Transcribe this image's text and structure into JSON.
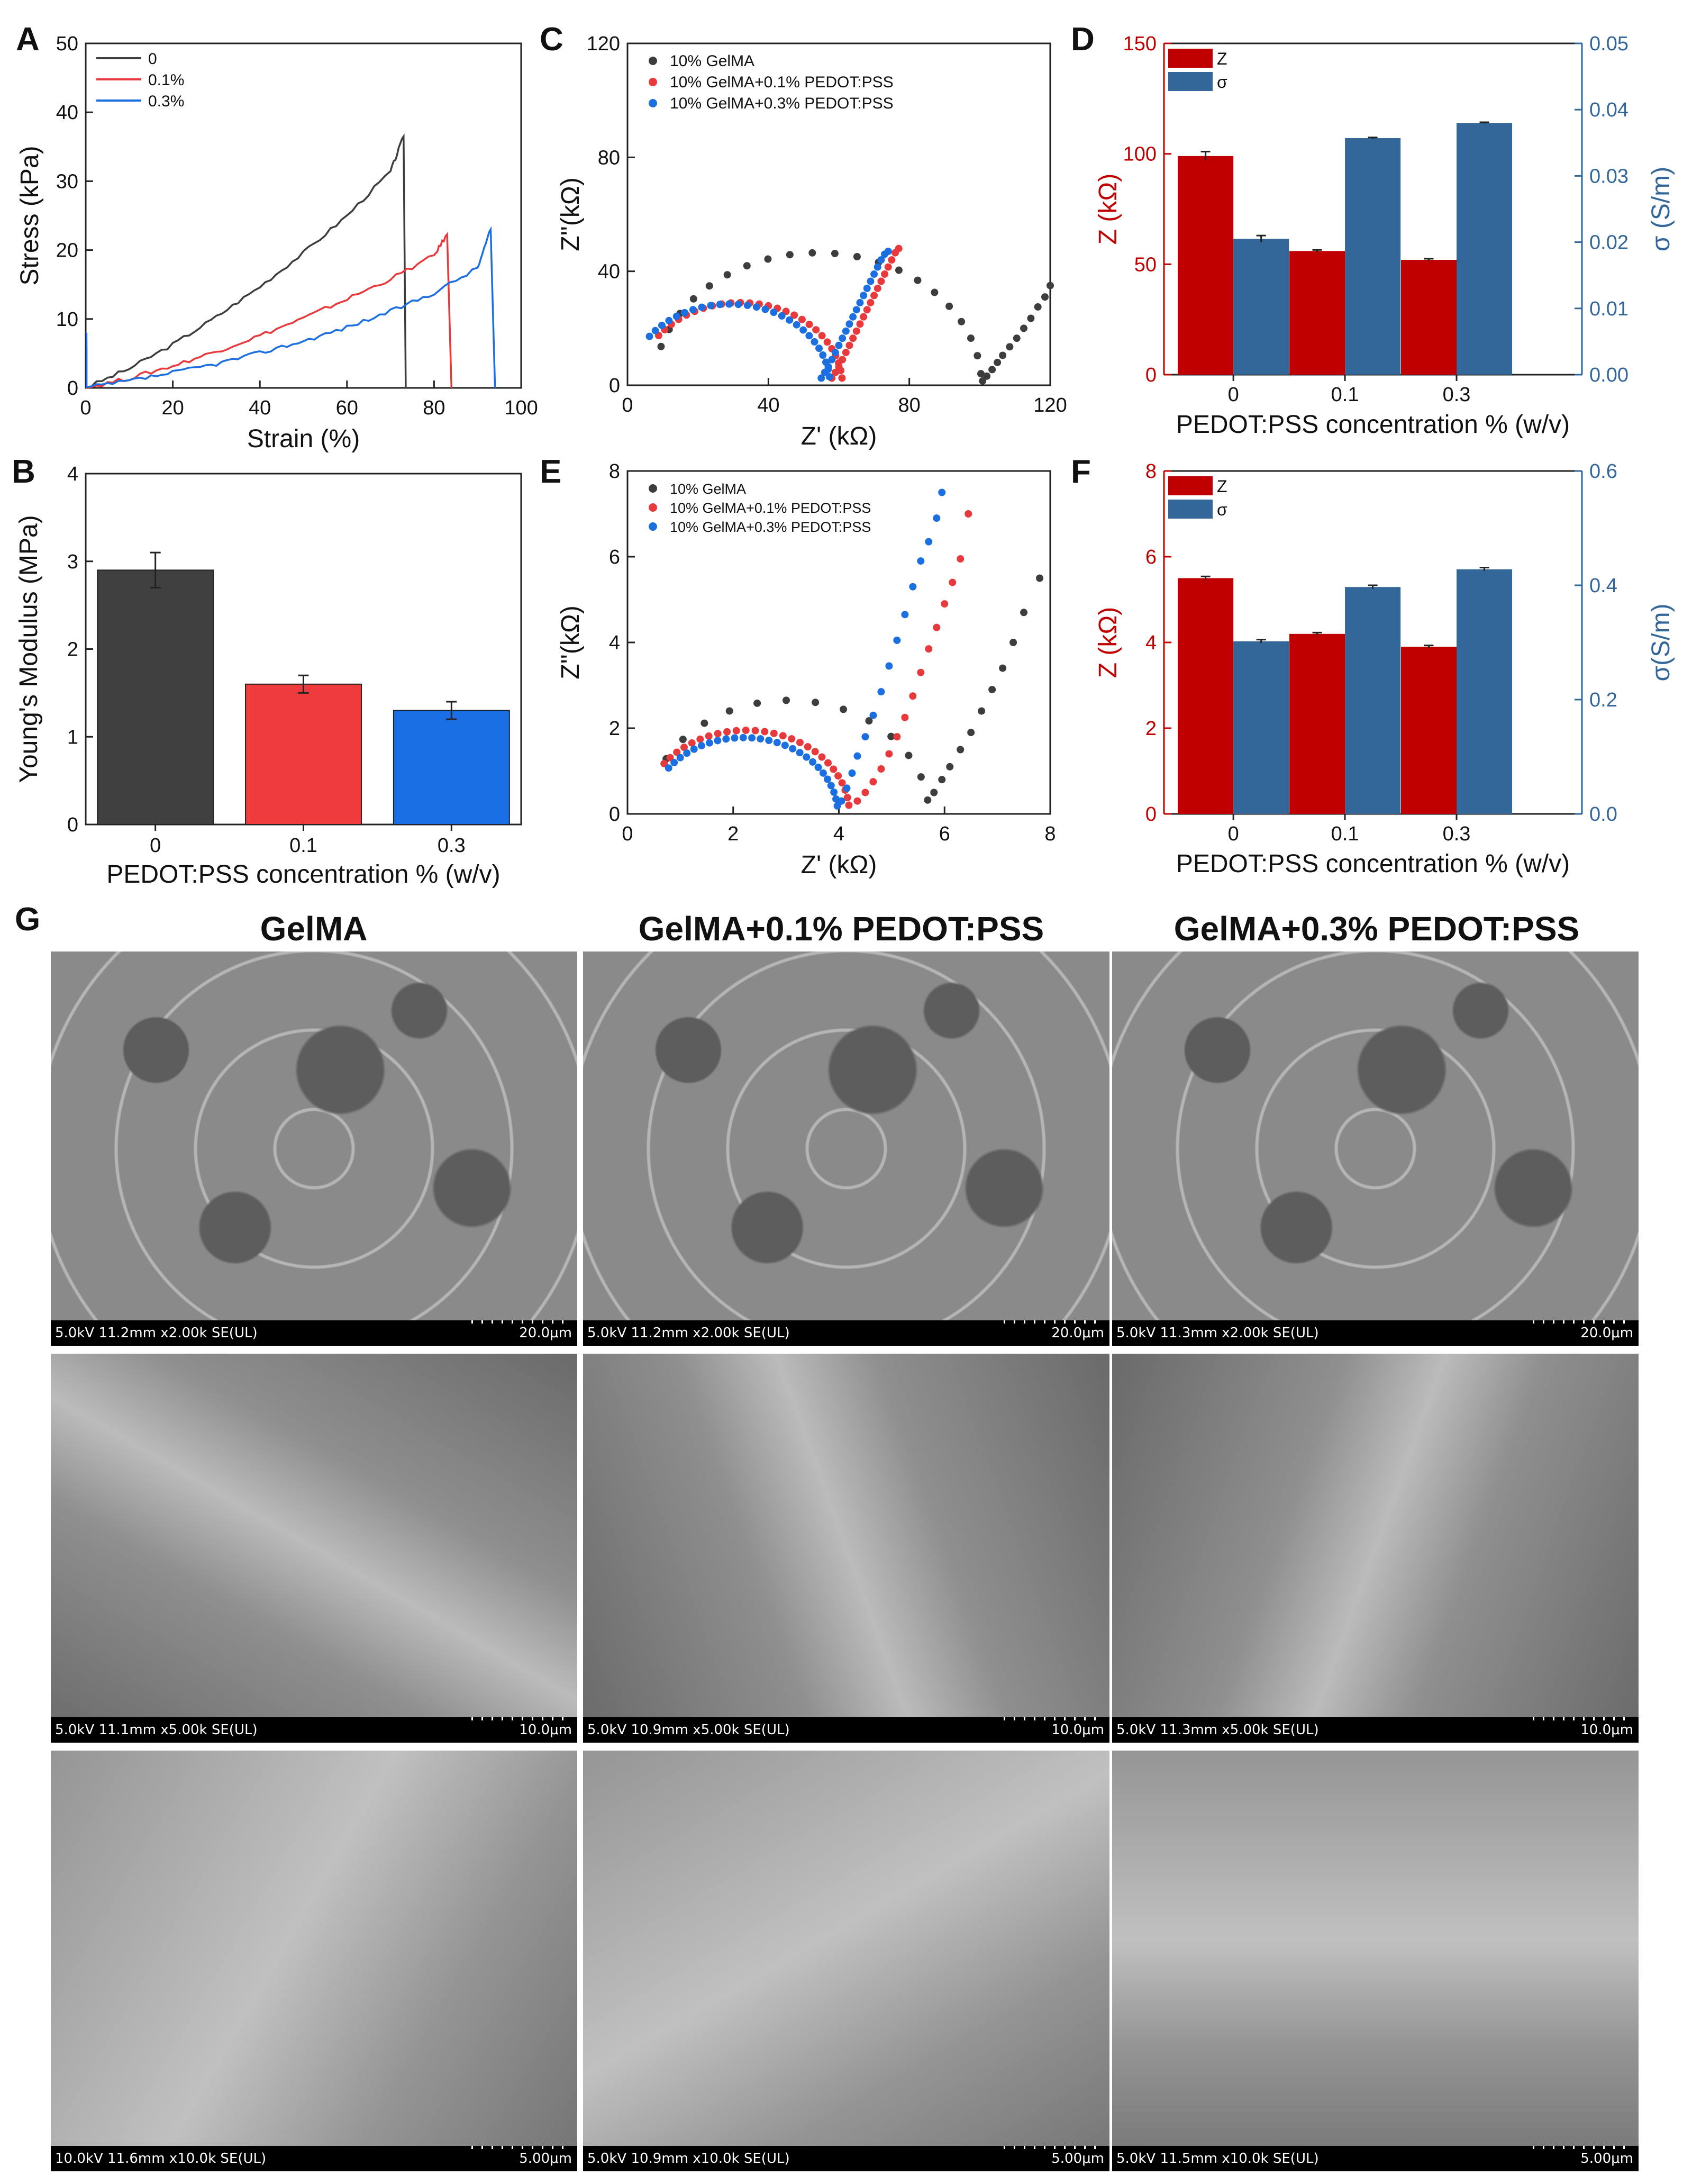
{
  "panel_labels": {
    "A": "A",
    "B": "B",
    "C": "C",
    "D": "D",
    "E": "E",
    "F": "F",
    "G": "G"
  },
  "colors": {
    "black": "#3d3d3d",
    "red": "#e8393c",
    "blue": "#1b6fe0",
    "bar_black": "#404040",
    "bar_red": "#ef3b3d",
    "bar_blue": "#1a6fe4",
    "dred": "#c00000",
    "dblue": "#336699"
  },
  "chart_data": [
    {
      "id": "A",
      "type": "line",
      "xlabel": "Strain (%)",
      "ylabel": "Stress (kPa)",
      "xlim": [
        0,
        100
      ],
      "ylim": [
        0,
        50
      ],
      "xticks": [
        "0",
        "20",
        "40",
        "60",
        "80",
        "100"
      ],
      "yticks": [
        "0",
        "10",
        "20",
        "30",
        "40",
        "50"
      ],
      "legend": [
        "0",
        "0.1%",
        "0.3%"
      ],
      "series": [
        {
          "name": "0",
          "x": [
            0,
            10,
            20,
            30,
            40,
            50,
            60,
            70,
            73
          ],
          "y": [
            0,
            2.8,
            6.3,
            10.3,
            14.7,
            19.6,
            25,
            31.4,
            36.5
          ],
          "break_x": 73.5
        },
        {
          "name": "0.1%",
          "x": [
            0,
            10,
            20,
            30,
            40,
            50,
            60,
            70,
            80,
            83
          ],
          "y": [
            0,
            1.4,
            3.2,
            5.3,
            7.6,
            10.1,
            12.9,
            15.8,
            19.2,
            22.3
          ],
          "break_x": 84
        },
        {
          "name": "0.3%",
          "x": [
            0,
            10,
            20,
            30,
            40,
            50,
            60,
            70,
            80,
            90,
            93
          ],
          "y": [
            0,
            1,
            2.2,
            3.5,
            5.1,
            6.8,
            8.8,
            11.1,
            13.8,
            17.4,
            23
          ],
          "break_x": 94
        }
      ]
    },
    {
      "id": "B",
      "type": "bar",
      "xlabel": "PEDOT:PSS concentration % (w/v)",
      "ylabel": "Young's Modulus (MPa)",
      "ylim": [
        0,
        4
      ],
      "yticks": [
        "0",
        "1",
        "2",
        "3",
        "4"
      ],
      "categories": [
        "0",
        "0.1",
        "0.3"
      ],
      "values": [
        2.9,
        1.6,
        1.3
      ],
      "errors": [
        0.2,
        0.1,
        0.1
      ]
    },
    {
      "id": "C",
      "type": "scatter",
      "xlabel": "Z' (kΩ)",
      "ylabel": "Z''(kΩ)",
      "xlim": [
        0,
        120
      ],
      "ylim": [
        0,
        120
      ],
      "xticks": [
        "0",
        "40",
        "80",
        "120"
      ],
      "yticks": [
        "0",
        "40",
        "80",
        "120"
      ],
      "legend": [
        "10% GelMA",
        "10% GelMA+0.1% PEDOT:PSS",
        "10% GelMA+0.3% PEDOT:PSS"
      ],
      "series": [
        {
          "name": "10% GelMA",
          "center": 54,
          "radius": 46.5,
          "th_start": 163,
          "th_end": 5,
          "arc_n": 20,
          "tail": [
            [
              100.8,
              1.5
            ],
            [
              102,
              3.2
            ],
            [
              103.5,
              5.5
            ],
            [
              105,
              8
            ],
            [
              106.5,
              10.5
            ],
            [
              108.5,
              13.5
            ],
            [
              110.5,
              16.5
            ],
            [
              112.5,
              20
            ],
            [
              114.5,
              23.5
            ],
            [
              116.5,
              27.5
            ],
            [
              118.5,
              31
            ],
            [
              120,
              35
            ]
          ]
        },
        {
          "name": "10% GelMA+0.1% PEDOT:PSS",
          "center": 32,
          "radius": 29,
          "th_start": 143,
          "th_end": 5,
          "arc_n": 26,
          "tail": [
            [
              58,
              2.5
            ],
            [
              59,
              4.5
            ],
            [
              60,
              6.5
            ],
            [
              61,
              9
            ],
            [
              62,
              11.5
            ],
            [
              63,
              14
            ],
            [
              64,
              16.5
            ],
            [
              65,
              19
            ],
            [
              66,
              21.5
            ],
            [
              67,
              24
            ],
            [
              68,
              26.5
            ],
            [
              69,
              29
            ],
            [
              70,
              31.5
            ],
            [
              71,
              34
            ],
            [
              72,
              36.5
            ],
            [
              73,
              39
            ],
            [
              74,
              41.5
            ],
            [
              75,
              44
            ],
            [
              76,
              46.5
            ],
            [
              77,
              48
            ]
          ]
        },
        {
          "name": "10% GelMA+0.3% PEDOT:PSS",
          "center": 29,
          "radius": 28.5,
          "th_start": 143,
          "th_end": 6,
          "arc_n": 26,
          "tail": [
            [
              55,
              2.5
            ],
            [
              56,
              4.5
            ],
            [
              57,
              6.5
            ],
            [
              58,
              9
            ],
            [
              59,
              11.5
            ],
            [
              60,
              14
            ],
            [
              61,
              16.5
            ],
            [
              62,
              19
            ],
            [
              63,
              21.5
            ],
            [
              64,
              24
            ],
            [
              65,
              26.5
            ],
            [
              66,
              29
            ],
            [
              67,
              31.5
            ],
            [
              68,
              34
            ],
            [
              69,
              36.5
            ],
            [
              70,
              39
            ],
            [
              71,
              41.5
            ],
            [
              72,
              44
            ],
            [
              73,
              46
            ],
            [
              74,
              47
            ]
          ]
        }
      ]
    },
    {
      "id": "D",
      "type": "bar",
      "xlabel": "PEDOT:PSS concentration % (w/v)",
      "ylabel_left": "Z (kΩ)",
      "ylabel_right": "σ (S/m)",
      "ylim_left": [
        0,
        150
      ],
      "ylim_right": [
        0,
        0.05
      ],
      "yticks_left": [
        "0",
        "50",
        "100",
        "150"
      ],
      "yticks_right": [
        "0.00",
        "0.01",
        "0.02",
        "0.03",
        "0.04",
        "0.05"
      ],
      "categories": [
        "0",
        "0.1",
        "0.3"
      ],
      "legend": [
        "Z",
        "σ"
      ],
      "series": [
        {
          "name": "Z",
          "values": [
            99,
            56,
            52
          ],
          "errors": [
            2,
            0.5,
            0.5
          ],
          "axis": "left"
        },
        {
          "name": "σ",
          "values": [
            0.0205,
            0.0357,
            0.038
          ],
          "errors": [
            0.0005,
            0.0001,
            0.0001
          ],
          "axis": "right"
        }
      ]
    },
    {
      "id": "E",
      "type": "scatter",
      "xlabel": "Z' (kΩ)",
      "ylabel": "Z''(kΩ)",
      "xlim": [
        0,
        8
      ],
      "ylim": [
        0,
        8
      ],
      "xticks": [
        "0",
        "2",
        "4",
        "6",
        "8"
      ],
      "yticks": [
        "0",
        "2",
        "4",
        "6",
        "8"
      ],
      "legend": [
        "10% GelMA",
        "10% GelMA+0.1% PEDOT:PSS",
        "10% GelMA+0.3% PEDOT:PSS"
      ],
      "series": [
        {
          "name": "10% GelMA",
          "center": 3.05,
          "radius": 2.65,
          "th_start": 151,
          "th_end": 7,
          "arc_n": 12,
          "tail": [
            [
              5.8,
              0.5
            ],
            [
              5.95,
              0.8
            ],
            [
              6.1,
              1.1
            ],
            [
              6.3,
              1.5
            ],
            [
              6.5,
              1.9
            ],
            [
              6.7,
              2.4
            ],
            [
              6.9,
              2.9
            ],
            [
              7.1,
              3.4
            ],
            [
              7.3,
              4
            ],
            [
              7.5,
              4.7
            ],
            [
              7.8,
              5.5
            ]
          ]
        },
        {
          "name": "10% GelMA+0.1% PEDOT:PSS",
          "center": 2.25,
          "radius": 1.95,
          "th_start": 143,
          "th_end": 6,
          "arc_n": 26,
          "tail": [
            [
              4.35,
              0.3
            ],
            [
              4.5,
              0.5
            ],
            [
              4.65,
              0.75
            ],
            [
              4.8,
              1.05
            ],
            [
              4.95,
              1.4
            ],
            [
              5.1,
              1.8
            ],
            [
              5.25,
              2.25
            ],
            [
              5.4,
              2.75
            ],
            [
              5.55,
              3.3
            ],
            [
              5.7,
              3.85
            ],
            [
              5.85,
              4.35
            ],
            [
              6.0,
              4.9
            ],
            [
              6.15,
              5.4
            ],
            [
              6.3,
              5.95
            ],
            [
              6.45,
              7.0
            ]
          ]
        },
        {
          "name": "10% GelMA+0.3% PEDOT:PSS",
          "center": 2.2,
          "radius": 1.78,
          "th_start": 143,
          "th_end": 6,
          "arc_n": 26,
          "tail": [
            [
              4.05,
              0.3
            ],
            [
              4.15,
              0.6
            ],
            [
              4.25,
              0.95
            ],
            [
              4.35,
              1.35
            ],
            [
              4.5,
              1.8
            ],
            [
              4.65,
              2.3
            ],
            [
              4.8,
              2.85
            ],
            [
              4.95,
              3.45
            ],
            [
              5.1,
              4.05
            ],
            [
              5.25,
              4.65
            ],
            [
              5.4,
              5.3
            ],
            [
              5.55,
              5.9
            ],
            [
              5.7,
              6.35
            ],
            [
              5.85,
              6.9
            ],
            [
              5.95,
              7.5
            ]
          ]
        }
      ]
    },
    {
      "id": "F",
      "type": "bar",
      "xlabel": "PEDOT:PSS concentration % (w/v)",
      "ylabel_left": "Z (kΩ)",
      "ylabel_right": "σ(S/m)",
      "ylim_left": [
        0,
        8
      ],
      "ylim_right": [
        0,
        0.6
      ],
      "yticks_left": [
        "0",
        "2",
        "4",
        "6",
        "8"
      ],
      "yticks_right": [
        "0.0",
        "0.2",
        "0.4",
        "0.6"
      ],
      "categories": [
        "0",
        "0.1",
        "0.3"
      ],
      "legend": [
        "Z",
        "σ"
      ],
      "series": [
        {
          "name": "Z",
          "values": [
            5.5,
            4.2,
            3.9
          ],
          "errors": [
            0.04,
            0.03,
            0.03
          ],
          "axis": "left"
        },
        {
          "name": "σ",
          "values": [
            0.302,
            0.397,
            0.428
          ],
          "errors": [
            0.003,
            0.003,
            0.003
          ],
          "axis": "right"
        }
      ]
    }
  ],
  "sem": {
    "columns": [
      "GelMA",
      "GelMA+0.1% PEDOT:PSS",
      "GelMA+0.3% PEDOT:PSS"
    ],
    "rows": [
      [
        {
          "info": "5.0kV 11.2mm x2.00k SE(UL)",
          "scale": "20.0μm"
        },
        {
          "info": "5.0kV 11.2mm x2.00k SE(UL)",
          "scale": "20.0μm"
        },
        {
          "info": "5.0kV 11.3mm x2.00k SE(UL)",
          "scale": "20.0μm"
        }
      ],
      [
        {
          "info": "5.0kV 11.1mm x5.00k SE(UL)",
          "scale": "10.0μm"
        },
        {
          "info": "5.0kV 10.9mm x5.00k SE(UL)",
          "scale": "10.0μm"
        },
        {
          "info": "5.0kV 11.3mm x5.00k SE(UL)",
          "scale": "10.0μm"
        }
      ],
      [
        {
          "info": "10.0kV 11.6mm x10.0k SE(UL)",
          "scale": "5.00μm"
        },
        {
          "info": "5.0kV 10.9mm x10.0k SE(UL)",
          "scale": "5.00μm"
        },
        {
          "info": "5.0kV 11.5mm x10.0k SE(UL)",
          "scale": "5.00μm"
        }
      ]
    ]
  }
}
